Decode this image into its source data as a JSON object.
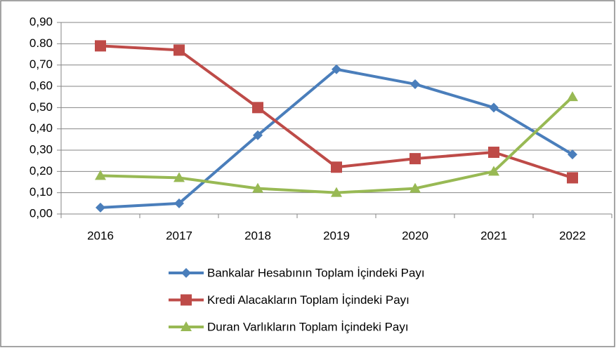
{
  "chart_data": {
    "type": "line",
    "categories": [
      "2016",
      "2017",
      "2018",
      "2019",
      "2020",
      "2021",
      "2022"
    ],
    "series": [
      {
        "name": "Bankalar Hesabının Toplam İçindeki Payı",
        "color": "#4a7ebb",
        "marker": "diamond",
        "values": [
          0.03,
          0.05,
          0.37,
          0.68,
          0.61,
          0.5,
          0.28
        ]
      },
      {
        "name": "Kredi Alacakların Toplam İçindeki Payı",
        "color": "#be4b48",
        "marker": "square",
        "values": [
          0.79,
          0.77,
          0.5,
          0.22,
          0.26,
          0.29,
          0.17
        ]
      },
      {
        "name": "Duran Varlıkların Toplam İçindeki Payı",
        "color": "#98b954",
        "marker": "triangle",
        "values": [
          0.18,
          0.17,
          0.12,
          0.1,
          0.12,
          0.2,
          0.55
        ]
      }
    ],
    "ylim": [
      0,
      0.9
    ],
    "yticks": [
      {
        "value": 0,
        "label": "0,00"
      },
      {
        "value": 0.1,
        "label": "0,10"
      },
      {
        "value": 0.2,
        "label": "0,20"
      },
      {
        "value": 0.3,
        "label": "0,30"
      },
      {
        "value": 0.4,
        "label": "0,40"
      },
      {
        "value": 0.5,
        "label": "0,50"
      },
      {
        "value": 0.6,
        "label": "0,60"
      },
      {
        "value": 0.7,
        "label": "0,70"
      },
      {
        "value": 0.8,
        "label": "0.80"
      },
      {
        "value": 0.9,
        "label": "0,90"
      }
    ],
    "grid": true,
    "legend": "bottom"
  }
}
